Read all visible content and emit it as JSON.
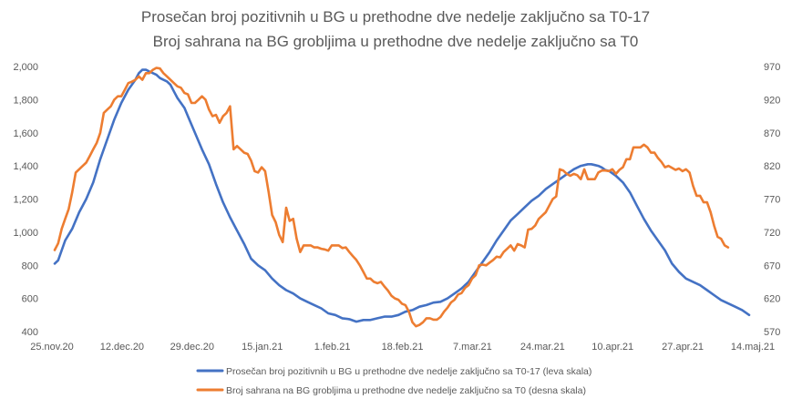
{
  "chart_data": {
    "type": "line",
    "title": [
      "Prosečan broj pozitivnih u BG u prethodne dve nedelje zaključno sa T0-17",
      "Broj sahrana na BG grobljima u prethodne dve nedelje zaključno sa T0"
    ],
    "x_tick_labels": [
      "25.nov.20",
      "12.dec.20",
      "29.dec.20",
      "15.jan.21",
      "1.feb.21",
      "18.feb.21",
      "7.mar.21",
      "24.mar.21",
      "10.apr.21",
      "27.apr.21",
      "14.maj.21"
    ],
    "x_range_days": [
      0,
      170
    ],
    "y_left": {
      "range": [
        400,
        2000
      ],
      "ticks": [
        "400",
        "600",
        "800",
        "1,000",
        "1,200",
        "1,400",
        "1,600",
        "1,800",
        "2,000"
      ]
    },
    "y_right": {
      "range": [
        570,
        970
      ],
      "ticks": [
        "570",
        "620",
        "670",
        "720",
        "770",
        "820",
        "870",
        "920",
        "970"
      ]
    },
    "grid": false,
    "legend_position": "bottom",
    "series": [
      {
        "name": "Prosečan broj pozitivnih u BG u prethodne dve nedelje zaključno sa T0-17 (leva skala)",
        "axis": "left",
        "color": "#4472c4",
        "points": [
          [
            0,
            810
          ],
          [
            1,
            830
          ],
          [
            3,
            950
          ],
          [
            5,
            1020
          ],
          [
            7,
            1120
          ],
          [
            9,
            1200
          ],
          [
            11,
            1300
          ],
          [
            13,
            1440
          ],
          [
            15,
            1560
          ],
          [
            17,
            1680
          ],
          [
            19,
            1780
          ],
          [
            21,
            1860
          ],
          [
            23,
            1920
          ],
          [
            24,
            1960
          ],
          [
            25,
            1980
          ],
          [
            26,
            1980
          ],
          [
            27,
            1970
          ],
          [
            28,
            1960
          ],
          [
            29,
            1950
          ],
          [
            30,
            1930
          ],
          [
            31,
            1920
          ],
          [
            32,
            1910
          ],
          [
            33,
            1890
          ],
          [
            34,
            1850
          ],
          [
            35,
            1810
          ],
          [
            36,
            1780
          ],
          [
            37,
            1750
          ],
          [
            38,
            1700
          ],
          [
            40,
            1600
          ],
          [
            42,
            1500
          ],
          [
            44,
            1410
          ],
          [
            46,
            1290
          ],
          [
            48,
            1180
          ],
          [
            50,
            1090
          ],
          [
            52,
            1010
          ],
          [
            54,
            930
          ],
          [
            56,
            840
          ],
          [
            58,
            800
          ],
          [
            60,
            770
          ],
          [
            62,
            720
          ],
          [
            64,
            680
          ],
          [
            66,
            650
          ],
          [
            68,
            630
          ],
          [
            70,
            600
          ],
          [
            72,
            580
          ],
          [
            74,
            560
          ],
          [
            76,
            540
          ],
          [
            78,
            510
          ],
          [
            80,
            500
          ],
          [
            82,
            480
          ],
          [
            84,
            475
          ],
          [
            86,
            460
          ],
          [
            88,
            470
          ],
          [
            90,
            470
          ],
          [
            92,
            480
          ],
          [
            94,
            490
          ],
          [
            96,
            490
          ],
          [
            98,
            500
          ],
          [
            100,
            520
          ],
          [
            102,
            530
          ],
          [
            104,
            550
          ],
          [
            106,
            560
          ],
          [
            108,
            575
          ],
          [
            110,
            580
          ],
          [
            112,
            600
          ],
          [
            114,
            630
          ],
          [
            116,
            660
          ],
          [
            118,
            700
          ],
          [
            120,
            760
          ],
          [
            122,
            820
          ],
          [
            124,
            880
          ],
          [
            126,
            950
          ],
          [
            128,
            1010
          ],
          [
            130,
            1070
          ],
          [
            132,
            1110
          ],
          [
            134,
            1150
          ],
          [
            136,
            1190
          ],
          [
            138,
            1220
          ],
          [
            140,
            1260
          ],
          [
            142,
            1290
          ],
          [
            144,
            1320
          ],
          [
            146,
            1350
          ],
          [
            148,
            1380
          ],
          [
            150,
            1400
          ],
          [
            152,
            1410
          ],
          [
            153,
            1410
          ],
          [
            154,
            1405
          ],
          [
            155,
            1400
          ],
          [
            156,
            1390
          ],
          [
            157,
            1375
          ],
          [
            158,
            1370
          ],
          [
            160,
            1340
          ],
          [
            162,
            1300
          ],
          [
            164,
            1240
          ],
          [
            166,
            1160
          ],
          [
            168,
            1080
          ],
          [
            170,
            1010
          ],
          [
            172,
            950
          ],
          [
            174,
            890
          ],
          [
            176,
            810
          ],
          [
            178,
            760
          ],
          [
            180,
            720
          ],
          [
            182,
            700
          ],
          [
            184,
            680
          ],
          [
            186,
            650
          ],
          [
            188,
            620
          ],
          [
            190,
            590
          ],
          [
            192,
            570
          ],
          [
            194,
            550
          ],
          [
            196,
            530
          ],
          [
            198,
            500
          ]
        ]
      },
      {
        "name": "Broj sahrana na BG grobljima u prethodne dve nedelje zaključno sa T0 (desna skala)",
        "axis": "right",
        "color": "#ed7d31",
        "points": [
          [
            0,
            693
          ],
          [
            1,
            703
          ],
          [
            2,
            725
          ],
          [
            3,
            740
          ],
          [
            4,
            755
          ],
          [
            5,
            780
          ],
          [
            6,
            810
          ],
          [
            7,
            815
          ],
          [
            8,
            820
          ],
          [
            9,
            825
          ],
          [
            10,
            835
          ],
          [
            11,
            845
          ],
          [
            12,
            855
          ],
          [
            13,
            870
          ],
          [
            14,
            900
          ],
          [
            15,
            905
          ],
          [
            16,
            910
          ],
          [
            17,
            920
          ],
          [
            18,
            925
          ],
          [
            19,
            925
          ],
          [
            20,
            935
          ],
          [
            21,
            945
          ],
          [
            22,
            947
          ],
          [
            23,
            950
          ],
          [
            24,
            955
          ],
          [
            25,
            950
          ],
          [
            26,
            960
          ],
          [
            27,
            960
          ],
          [
            28,
            965
          ],
          [
            29,
            968
          ],
          [
            30,
            967
          ],
          [
            31,
            960
          ],
          [
            32,
            955
          ],
          [
            33,
            950
          ],
          [
            34,
            945
          ],
          [
            35,
            940
          ],
          [
            36,
            938
          ],
          [
            37,
            930
          ],
          [
            38,
            928
          ],
          [
            39,
            915
          ],
          [
            40,
            915
          ],
          [
            41,
            920
          ],
          [
            42,
            925
          ],
          [
            43,
            920
          ],
          [
            44,
            905
          ],
          [
            45,
            895
          ],
          [
            46,
            897
          ],
          [
            47,
            885
          ],
          [
            48,
            895
          ],
          [
            49,
            900
          ],
          [
            50,
            910
          ],
          [
            51,
            845
          ],
          [
            52,
            850
          ],
          [
            53,
            845
          ],
          [
            54,
            840
          ],
          [
            55,
            838
          ],
          [
            56,
            828
          ],
          [
            57,
            812
          ],
          [
            58,
            810
          ],
          [
            59,
            818
          ],
          [
            60,
            812
          ],
          [
            61,
            780
          ],
          [
            62,
            746
          ],
          [
            63,
            735
          ],
          [
            64,
            716
          ],
          [
            65,
            705
          ],
          [
            66,
            757
          ],
          [
            67,
            737
          ],
          [
            68,
            740
          ],
          [
            69,
            710
          ],
          [
            70,
            690
          ],
          [
            71,
            700
          ],
          [
            72,
            700
          ],
          [
            73,
            700
          ],
          [
            74,
            697
          ],
          [
            75,
            697
          ],
          [
            76,
            695
          ],
          [
            77,
            694
          ],
          [
            78,
            692
          ],
          [
            79,
            700
          ],
          [
            80,
            700
          ],
          [
            81,
            700
          ],
          [
            82,
            696
          ],
          [
            83,
            697
          ],
          [
            84,
            690
          ],
          [
            85,
            684
          ],
          [
            86,
            678
          ],
          [
            87,
            670
          ],
          [
            88,
            660
          ],
          [
            89,
            650
          ],
          [
            90,
            650
          ],
          [
            91,
            645
          ],
          [
            92,
            643
          ],
          [
            93,
            645
          ],
          [
            94,
            638
          ],
          [
            95,
            632
          ],
          [
            96,
            624
          ],
          [
            97,
            620
          ],
          [
            98,
            618
          ],
          [
            99,
            612
          ],
          [
            100,
            610
          ],
          [
            101,
            600
          ],
          [
            102,
            584
          ],
          [
            103,
            578
          ],
          [
            104,
            580
          ],
          [
            105,
            584
          ],
          [
            106,
            590
          ],
          [
            107,
            590
          ],
          [
            108,
            588
          ],
          [
            109,
            588
          ],
          [
            110,
            592
          ],
          [
            111,
            600
          ],
          [
            112,
            606
          ],
          [
            113,
            614
          ],
          [
            114,
            618
          ],
          [
            115,
            626
          ],
          [
            116,
            628
          ],
          [
            117,
            636
          ],
          [
            118,
            640
          ],
          [
            119,
            650
          ],
          [
            120,
            655
          ],
          [
            121,
            670
          ],
          [
            122,
            671
          ],
          [
            123,
            670
          ],
          [
            124,
            674
          ],
          [
            125,
            678
          ],
          [
            126,
            683
          ],
          [
            127,
            682
          ],
          [
            128,
            690
          ],
          [
            129,
            695
          ],
          [
            130,
            700
          ],
          [
            131,
            692
          ],
          [
            132,
            702
          ],
          [
            133,
            700
          ],
          [
            134,
            697
          ],
          [
            135,
            724
          ],
          [
            136,
            725
          ],
          [
            137,
            730
          ],
          [
            138,
            740
          ],
          [
            139,
            745
          ],
          [
            140,
            750
          ],
          [
            141,
            760
          ],
          [
            142,
            770
          ],
          [
            143,
            774
          ],
          [
            144,
            815
          ],
          [
            145,
            813
          ],
          [
            146,
            808
          ],
          [
            147,
            805
          ],
          [
            148,
            808
          ],
          [
            149,
            806
          ],
          [
            150,
            800
          ],
          [
            151,
            815
          ],
          [
            152,
            800
          ],
          [
            153,
            800
          ],
          [
            154,
            800
          ],
          [
            155,
            810
          ],
          [
            156,
            813
          ],
          [
            157,
            813
          ],
          [
            158,
            812
          ],
          [
            159,
            815
          ],
          [
            160,
            808
          ],
          [
            161,
            814
          ],
          [
            162,
            818
          ],
          [
            163,
            830
          ],
          [
            164,
            830
          ],
          [
            165,
            848
          ],
          [
            166,
            848
          ],
          [
            167,
            848
          ],
          [
            168,
            852
          ],
          [
            169,
            848
          ],
          [
            170,
            840
          ],
          [
            171,
            840
          ],
          [
            172,
            832
          ],
          [
            173,
            826
          ],
          [
            174,
            818
          ],
          [
            175,
            820
          ],
          [
            176,
            817
          ],
          [
            177,
            814
          ],
          [
            178,
            816
          ],
          [
            179,
            812
          ],
          [
            180,
            815
          ],
          [
            181,
            810
          ],
          [
            182,
            790
          ],
          [
            183,
            775
          ],
          [
            184,
            775
          ],
          [
            185,
            765
          ],
          [
            186,
            765
          ],
          [
            187,
            750
          ],
          [
            188,
            730
          ],
          [
            189,
            713
          ],
          [
            190,
            710
          ],
          [
            191,
            700
          ],
          [
            192,
            697
          ]
        ]
      }
    ]
  }
}
